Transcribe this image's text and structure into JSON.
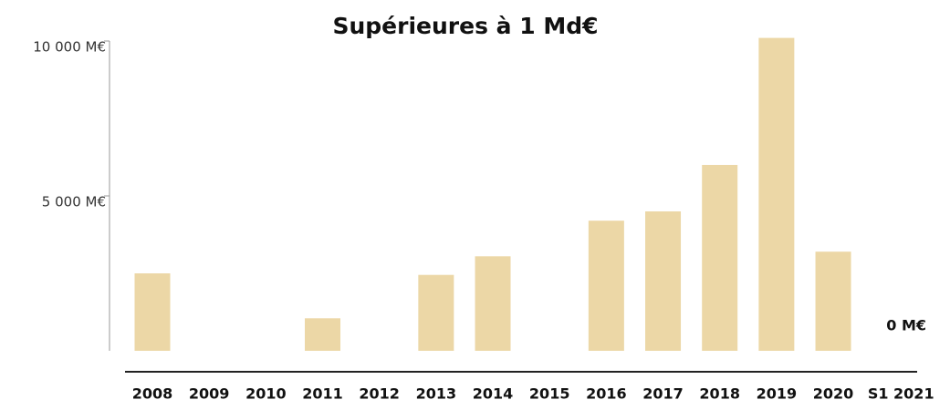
{
  "chart_data": {
    "type": "bar",
    "title": "Supérieures à 1 Md€",
    "categories": [
      "2008",
      "2009",
      "2010",
      "2011",
      "2012",
      "2013",
      "2014",
      "2015",
      "2016",
      "2017",
      "2018",
      "2019",
      "2020",
      "S1 2021"
    ],
    "values": [
      2500,
      0,
      0,
      1050,
      0,
      2450,
      3050,
      0,
      4200,
      4500,
      6000,
      10100,
      3200,
      0
    ],
    "value_labels": [
      null,
      null,
      null,
      null,
      null,
      null,
      null,
      null,
      null,
      null,
      null,
      null,
      null,
      "0 M€"
    ],
    "color": "#ecd7a6",
    "ylim": [
      0,
      10000
    ],
    "yticks": [
      {
        "value": 5000,
        "label": "5 000 M€"
      },
      {
        "value": 10000,
        "label": "10 000 M€"
      }
    ],
    "grid": false
  }
}
